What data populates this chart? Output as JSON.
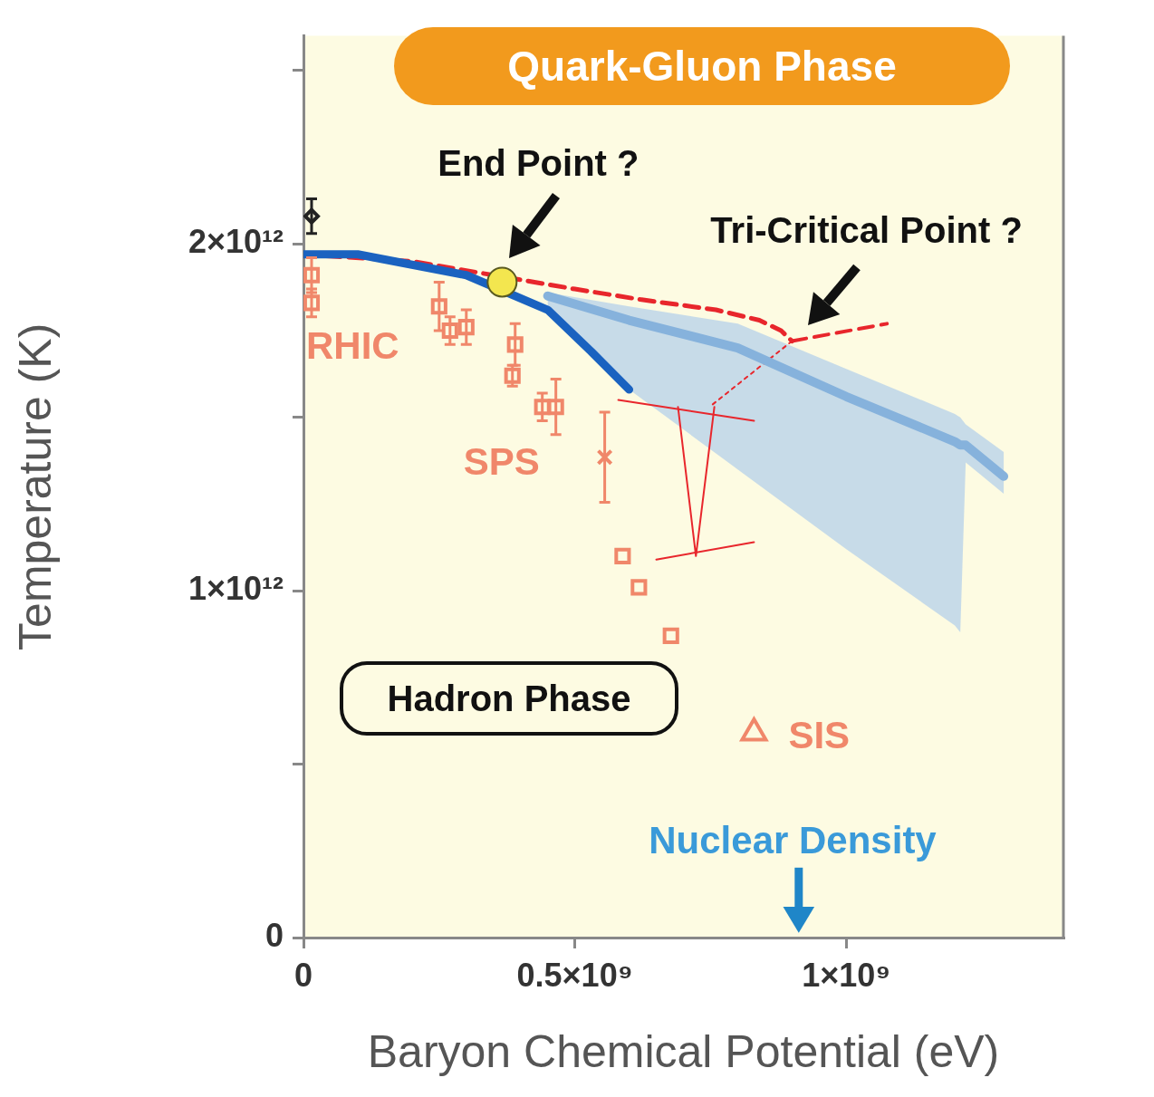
{
  "chart_data": {
    "type": "line",
    "xlabel": "Baryon Chemical Potential (eV)",
    "ylabel": "Temperature (K)",
    "xlim": [
      0,
      1400000000.0
    ],
    "ylim": [
      0,
      2600000000000.0
    ],
    "xticks": [
      0,
      {
        "value": 500000000.0,
        "label": "0.5×10⁹"
      },
      {
        "value": 1000000000.0,
        "label": "1×10⁹"
      }
    ],
    "yticks": [
      0,
      {
        "value": 500000000000.0,
        "label": null
      },
      {
        "value": 1000000000000.0,
        "label": "1×10¹²"
      },
      {
        "value": 1500000000000.0,
        "label": null
      },
      {
        "value": 2000000000000.0,
        "label": "2×10¹²"
      },
      {
        "value": 2500000000000.0,
        "label": null
      }
    ],
    "annotations": [
      "Quark-Gluon Phase",
      "Hadron Phase",
      {
        "text": "End Point ?",
        "x": 366000000.0,
        "y": 1890000000000.0
      },
      {
        "text": "Tri-Critical Point ?",
        "x": 900000000.0,
        "y": 1720000000000.0
      },
      "Nuclear Density"
    ],
    "series": [
      {
        "type": "line",
        "color": "#86b2dc",
        "x": [
          450000000.0,
          600000000.0,
          800000000.0,
          1000000000.0,
          1200000000.0,
          1210000000.0,
          1220000000.0,
          1290000000.0
        ],
        "values": [
          1850000000000.0,
          1780000000000.0,
          1700000000000.0,
          1560000000000.0,
          1430000000000.0,
          1420000000000.0,
          1420000000000.0,
          1330000000000.0
        ],
        "upper": [
          1860000000000.0,
          1820000000000.0,
          1770000000000.0,
          1640000000000.0,
          1510000000000.0,
          1500000000000.0,
          1480000000000.0,
          1400000000000.0
        ],
        "lower": [
          1810000000000.0,
          1580000000000.0,
          1350000000000.0,
          1120000000000.0,
          900000000000.0,
          880000000000.0,
          1370000000000.0,
          1280000000000.0
        ]
      },
      {
        "type": "line",
        "color": "#1a62c0",
        "x": [
          0,
          100000000.0,
          200000000.0,
          300000000.0,
          366000000.0,
          450000000.0,
          530000000.0,
          600000000.0
        ],
        "values": [
          1970000000000.0,
          1970000000000.0,
          1940000000000.0,
          1910000000000.0,
          null,
          1810000000000.0,
          1690000000000.0,
          1580000000000.0
        ]
      },
      {
        "type": "line",
        "color": "#e8262c",
        "line_style": "dashed",
        "x": [
          0,
          200000000.0,
          366000000.0,
          500000000.0,
          620000000.0,
          760000000.0,
          840000000.0,
          880000000.0,
          900000000.0
        ],
        "values": [
          1970000000000.0,
          1950000000000.0,
          null,
          1870000000000.0,
          1840000000000.0,
          1810000000000.0,
          1780000000000.0,
          1750000000000.0,
          1720000000000.0
        ]
      },
      {
        "type": "line",
        "color": "#e8262c",
        "line_style": "dashed",
        "x": [
          900000000.0,
          1075000000.0
        ],
        "values": [
          1720000000000.0,
          1770000000000.0
        ]
      },
      {
        "type": "line",
        "color": "#e8262c",
        "line_style": "dotted",
        "x": [
          900000000.0,
          748000000.0
        ],
        "values": [
          1720000000000.0,
          1530000000000.0
        ]
      },
      {
        "type": "line",
        "color": "#e8262c",
        "x": [
          690000000.0,
          723000000.0,
          757000000.0
        ],
        "values": [
          1530000000000.0,
          1100000000000.0,
          1530000000000.0
        ]
      },
      {
        "type": "line",
        "color": "#e8262c",
        "x": [
          580000000.0,
          830000000.0
        ],
        "values": [
          1550000000000.0,
          1490000000000.0
        ]
      },
      {
        "type": "line",
        "color": "#e8262c",
        "x": [
          650000000.0,
          830000000.0
        ],
        "values": [
          1090000000000.0,
          1140000000000.0
        ]
      },
      {
        "type": "scatter",
        "color": "#f3e64f",
        "marker": "circle",
        "x": [
          366000000.0
        ],
        "values": [
          1890000000000.0
        ]
      },
      {
        "type": "scatter",
        "color": "#222222",
        "marker": "diamond",
        "x": [
          15000000.0
        ],
        "values": [
          2080000000000.0
        ],
        "errors": [
          50000000000.0
        ]
      },
      {
        "type": "scatter",
        "name": "RHIC",
        "color": "#f0876a",
        "marker": "square",
        "x": [
          15000000.0,
          15000000.0,
          250000000.0,
          270000000.0,
          300000000.0
        ],
        "values": [
          1910000000000.0,
          1830000000000.0,
          1820000000000.0,
          1750000000000.0,
          1760000000000.0
        ],
        "errors": [
          50000000000.0,
          40000000000.0,
          70000000000.0,
          40000000000.0,
          50000000000.0
        ]
      },
      {
        "type": "scatter",
        "name": "SPS",
        "color": "#f0876a",
        "marker": "square",
        "x": [
          390000000.0,
          385000000.0,
          440000000.0,
          465000000.0
        ],
        "values": [
          1710000000000.0,
          1620000000000.0,
          1530000000000.0,
          1530000000000.0
        ],
        "errors": [
          60000000000.0,
          30000000000.0,
          40000000000.0,
          80000000000.0
        ]
      },
      {
        "type": "scatter",
        "color": "#f0876a",
        "marker": "cross",
        "x": [
          555000000.0
        ],
        "values": [
          1385000000000.0
        ],
        "errors": [
          130000000000.0
        ]
      },
      {
        "type": "scatter",
        "color": "#f0876a",
        "marker": "square",
        "x": [
          588000000.0,
          618000000.0,
          677000000.0
        ],
        "values": [
          1100000000000.0,
          1010000000000.0,
          870000000000.0
        ]
      },
      {
        "type": "scatter",
        "name": "SIS",
        "color": "#f0876a",
        "marker": "triangle",
        "x": [
          830000000.0
        ],
        "values": [
          590000000000.0
        ]
      }
    ]
  }
}
